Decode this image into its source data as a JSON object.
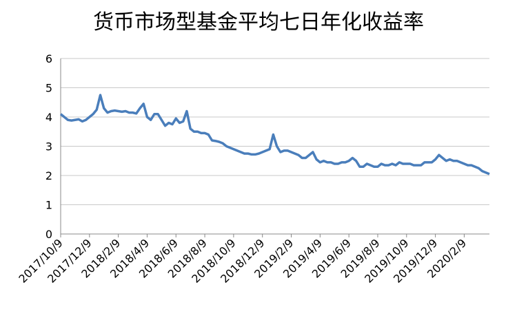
{
  "chart_data": {
    "type": "line",
    "title": "货币市场型基金平均七日年化收益率",
    "categories": [
      "2017/10/9",
      null,
      null,
      null,
      null,
      null,
      null,
      null,
      "2017/12/9",
      null,
      null,
      null,
      null,
      null,
      null,
      null,
      "2018/2/9",
      null,
      null,
      null,
      null,
      null,
      null,
      null,
      "2018/4/9",
      null,
      null,
      null,
      null,
      null,
      null,
      null,
      "2018/6/9",
      null,
      null,
      null,
      null,
      null,
      null,
      null,
      "2018/8/9",
      null,
      null,
      null,
      null,
      null,
      null,
      null,
      "2018/10/9",
      null,
      null,
      null,
      null,
      null,
      null,
      null,
      "2018/12/9",
      null,
      null,
      null,
      null,
      null,
      null,
      null,
      "2019/2/9",
      null,
      null,
      null,
      null,
      null,
      null,
      null,
      "2019/4/9",
      null,
      null,
      null,
      null,
      null,
      null,
      null,
      "2019/6/9",
      null,
      null,
      null,
      null,
      null,
      null,
      null,
      "2019/8/9",
      null,
      null,
      null,
      null,
      null,
      null,
      null,
      "2019/10/9",
      null,
      null,
      null,
      null,
      null,
      null,
      null,
      "2019/12/9",
      null,
      null,
      null,
      null,
      null,
      null,
      null,
      "2020/2/9",
      null,
      null,
      null,
      null,
      null,
      null,
      null
    ],
    "series": [
      {
        "color": "#4a7ebb",
        "values": [
          4.1,
          4.0,
          3.9,
          3.88,
          3.9,
          3.92,
          3.85,
          3.9,
          4.0,
          4.1,
          4.25,
          4.75,
          4.3,
          4.15,
          4.2,
          4.22,
          4.2,
          4.18,
          4.2,
          4.15,
          4.15,
          4.12,
          4.3,
          4.45,
          4.0,
          3.9,
          4.1,
          4.1,
          3.9,
          3.7,
          3.8,
          3.75,
          3.95,
          3.8,
          3.85,
          4.2,
          3.6,
          3.5,
          3.5,
          3.45,
          3.45,
          3.4,
          3.2,
          3.18,
          3.15,
          3.1,
          3.0,
          2.95,
          2.9,
          2.85,
          2.8,
          2.75,
          2.75,
          2.72,
          2.72,
          2.75,
          2.8,
          2.85,
          2.9,
          3.4,
          3.0,
          2.8,
          2.85,
          2.85,
          2.8,
          2.75,
          2.7,
          2.6,
          2.6,
          2.7,
          2.8,
          2.55,
          2.45,
          2.5,
          2.45,
          2.45,
          2.4,
          2.4,
          2.45,
          2.45,
          2.5,
          2.6,
          2.5,
          2.3,
          2.3,
          2.4,
          2.35,
          2.3,
          2.3,
          2.4,
          2.35,
          2.35,
          2.4,
          2.35,
          2.45,
          2.4,
          2.4,
          2.4,
          2.35,
          2.35,
          2.35,
          2.45,
          2.45,
          2.45,
          2.55,
          2.7,
          2.6,
          2.5,
          2.55,
          2.5,
          2.5,
          2.45,
          2.4,
          2.35,
          2.35,
          2.3,
          2.25,
          2.15,
          2.1,
          2.05
        ]
      }
    ],
    "ylim": [
      0,
      6
    ],
    "yticks": [
      0,
      1,
      2,
      3,
      4,
      5,
      6
    ],
    "grid": true
  }
}
